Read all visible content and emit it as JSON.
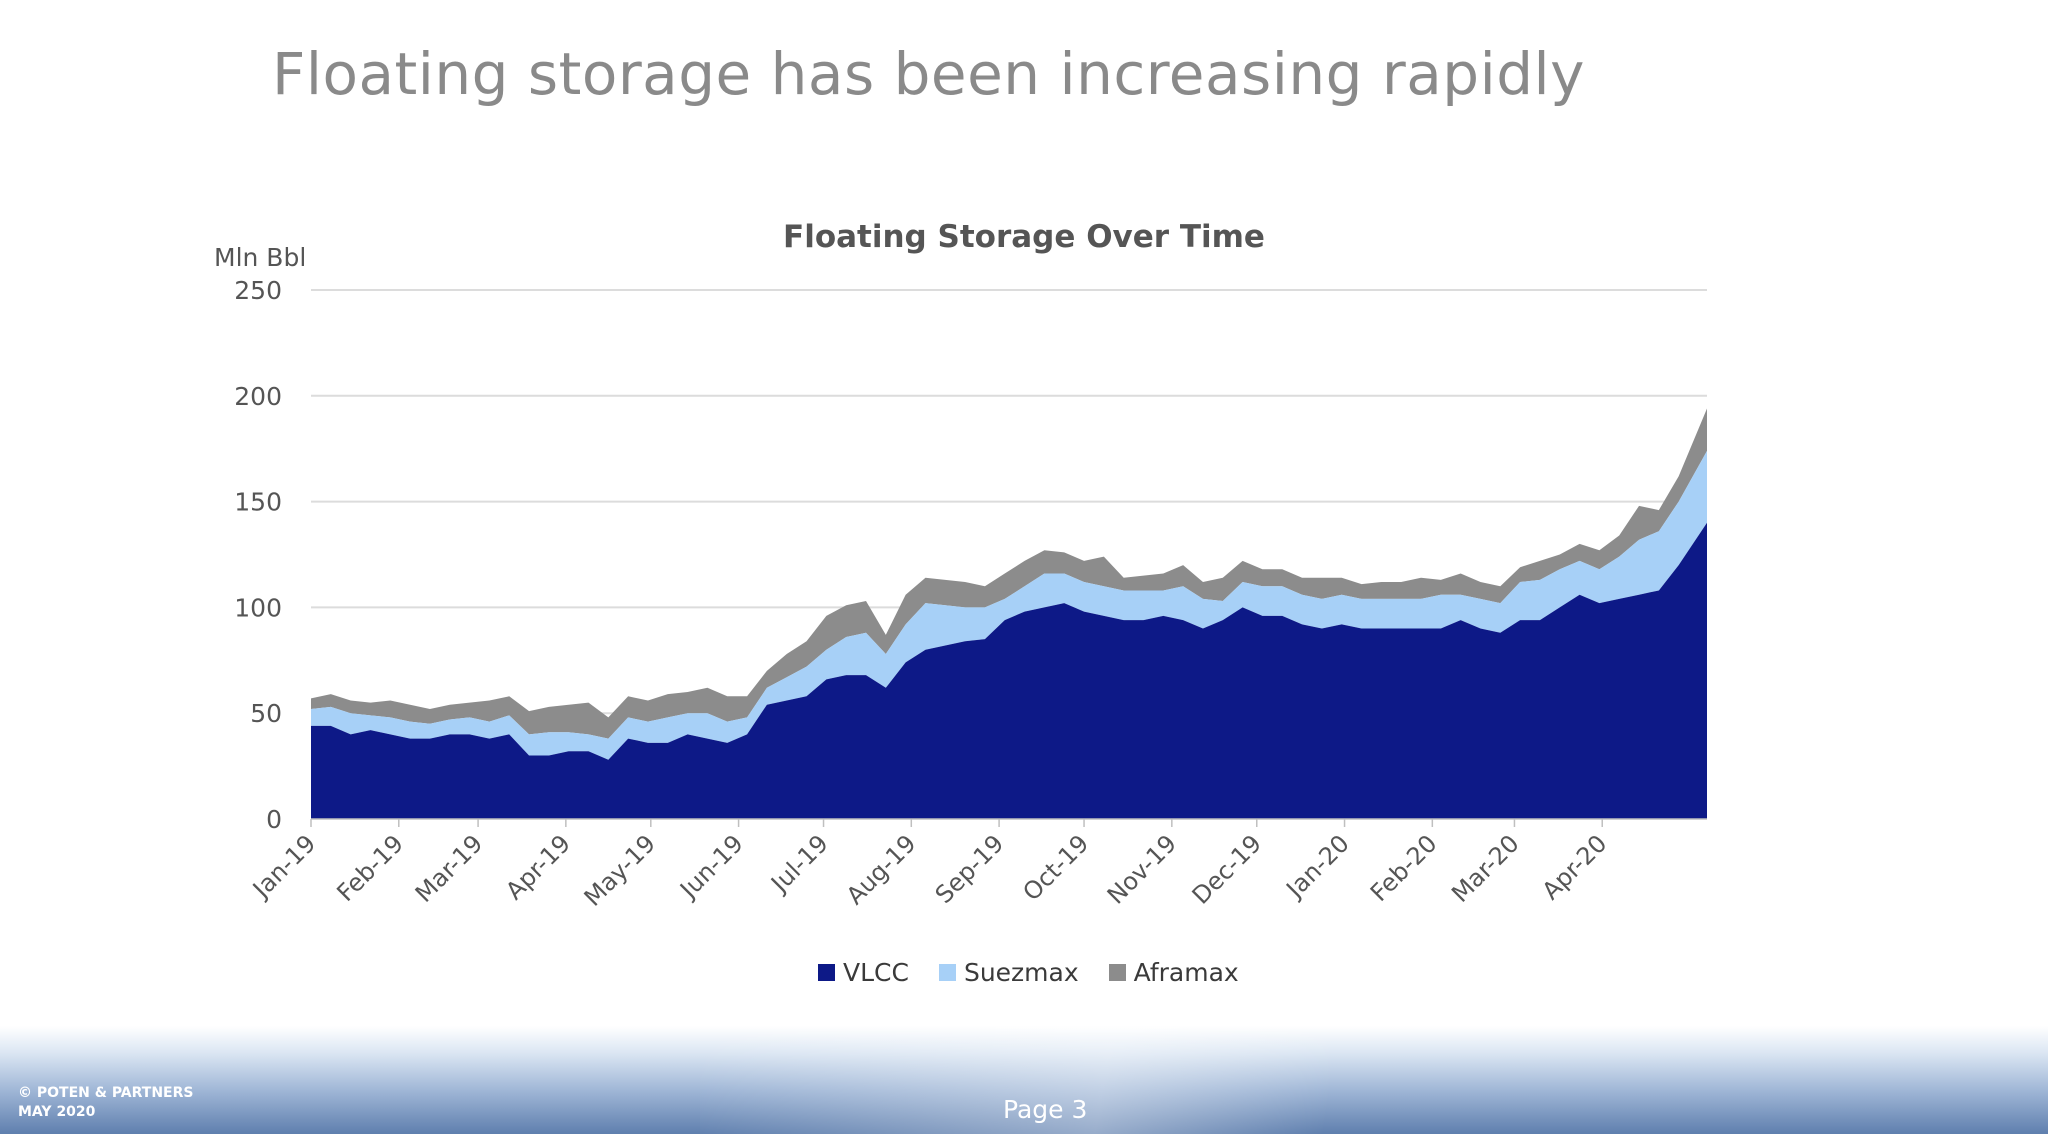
{
  "slide": {
    "title": "Floating storage has been increasing rapidly",
    "footer": {
      "company": "© POTEN & PARTNERS",
      "date": "MAY 2020",
      "page": "Page 3"
    }
  },
  "colors": {
    "vlcc": "#0d1987",
    "suezmax": "#a7d0f7",
    "aframax": "#8c8c8c",
    "grid": "#dcdcdc"
  },
  "chart_data": {
    "type": "area",
    "stacked": true,
    "title": "Floating Storage Over Time",
    "ylabel": "Mln Bbl",
    "xlabel": "",
    "ylim": [
      0,
      250
    ],
    "yticks": [
      0,
      50,
      100,
      150,
      200,
      250
    ],
    "grid": true,
    "legend_position": "bottom",
    "x_tick_labels": [
      "Jan-19",
      "Feb-19",
      "Mar-19",
      "Apr-19",
      "May-19",
      "Jun-19",
      "Jul-19",
      "Aug-19",
      "Sep-19",
      "Oct-19",
      "Nov-19",
      "Dec-19",
      "Jan-20",
      "Feb-20",
      "Mar-20",
      "Apr-20"
    ],
    "x_start": "2019-01-01",
    "x_end": "2020-05-08",
    "point_interval_days": 7,
    "series": [
      {
        "name": "VLCC",
        "values": [
          44,
          44,
          40,
          42,
          40,
          38,
          38,
          40,
          40,
          38,
          40,
          30,
          30,
          32,
          32,
          28,
          38,
          36,
          36,
          40,
          38,
          36,
          40,
          54,
          56,
          58,
          66,
          68,
          68,
          62,
          74,
          80,
          82,
          84,
          85,
          94,
          98,
          100,
          102,
          98,
          96,
          94,
          94,
          96,
          94,
          90,
          94,
          100,
          96,
          96,
          92,
          90,
          92,
          90,
          90,
          90,
          90,
          90,
          94,
          90,
          88,
          94,
          94,
          100,
          106,
          102,
          104,
          106,
          108,
          120,
          140
        ]
      },
      {
        "name": "Suezmax",
        "values": [
          8,
          9,
          10,
          7,
          8,
          8,
          7,
          7,
          8,
          8,
          9,
          10,
          11,
          9,
          8,
          10,
          10,
          10,
          12,
          10,
          12,
          10,
          8,
          8,
          11,
          14,
          14,
          18,
          20,
          16,
          18,
          22,
          19,
          16,
          15,
          10,
          12,
          16,
          14,
          14,
          14,
          14,
          14,
          12,
          16,
          14,
          9,
          12,
          14,
          14,
          14,
          14,
          14,
          14,
          14,
          14,
          14,
          16,
          12,
          14,
          14,
          18,
          19,
          18,
          16,
          16,
          20,
          26,
          28,
          30,
          34
        ]
      },
      {
        "name": "Aframax",
        "values": [
          5,
          6,
          6,
          6,
          8,
          8,
          7,
          7,
          7,
          10,
          9,
          11,
          12,
          13,
          15,
          10,
          10,
          10,
          11,
          10,
          12,
          12,
          10,
          8,
          11,
          12,
          16,
          15,
          15,
          9,
          14,
          12,
          12,
          12,
          10,
          12,
          12,
          11,
          10,
          10,
          14,
          6,
          7,
          8,
          10,
          8,
          11,
          10,
          8,
          8,
          8,
          10,
          8,
          7,
          8,
          8,
          10,
          7,
          10,
          8,
          8,
          7,
          9,
          7,
          8,
          9,
          10,
          16,
          10,
          12,
          20
        ]
      }
    ]
  }
}
